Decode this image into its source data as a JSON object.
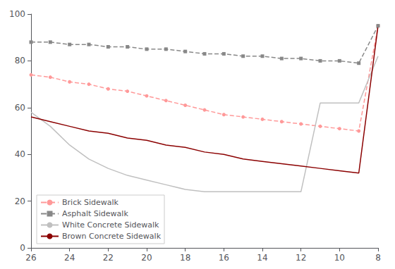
{
  "chart_data": {
    "type": "line",
    "x": [
      26,
      25,
      24,
      23,
      22,
      21,
      20,
      19,
      18,
      17,
      16,
      15,
      14,
      13,
      12,
      11,
      10,
      9,
      8
    ],
    "series": [
      {
        "name": "Brick Sidewalk",
        "color": "#ff9999",
        "marker": "circle",
        "line_style": "dashed",
        "values": [
          74,
          73,
          71,
          70,
          68,
          67,
          65,
          63,
          61,
          59,
          57,
          56,
          55,
          54,
          53,
          52,
          51,
          50,
          95
        ]
      },
      {
        "name": "Asphalt Sidewalk",
        "color": "#888888",
        "marker": "square",
        "line_style": "dashed",
        "values": [
          88,
          88,
          87,
          87,
          86,
          86,
          85,
          85,
          84,
          83,
          83,
          82,
          82,
          81,
          81,
          80,
          80,
          79,
          95
        ]
      },
      {
        "name": "White Concrete Sidewalk",
        "color": "#c0c0c0",
        "marker": "none",
        "line_style": "solid",
        "values": [
          58,
          52,
          44,
          38,
          34,
          31,
          29,
          27,
          25,
          24,
          24,
          24,
          24,
          24,
          24,
          62,
          62,
          62,
          82
        ]
      },
      {
        "name": "Brown Concrete Sidewalk",
        "color": "#8b0000",
        "marker": "none",
        "line_style": "solid",
        "values": [
          56,
          54,
          52,
          50,
          49,
          47,
          46,
          44,
          43,
          41,
          40,
          38,
          37,
          36,
          35,
          34,
          33,
          32,
          95
        ]
      }
    ],
    "xlim": [
      26,
      8
    ],
    "xticks": [
      26,
      24,
      22,
      20,
      18,
      16,
      14,
      12,
      10,
      8
    ],
    "ylim": [
      0,
      100
    ],
    "yticks": [
      0,
      20,
      40,
      60,
      80,
      100
    ],
    "grid": false,
    "legend": "lower left"
  }
}
